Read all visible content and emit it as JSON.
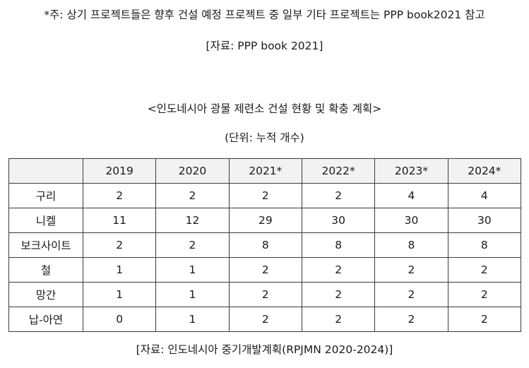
{
  "note": "*주: 상기 프로젝트들은 향후 건설 예정 프로젝트 중 일부 기타 프로젝트는 PPP book2021 참고",
  "source_top": "[자료: PPP book 2021]",
  "table_title": "<인도네시아 광물 제련소 건설 현황 및 확충 계획>",
  "unit": "(단위: 누적 개수)",
  "table": {
    "corner": "",
    "years": [
      "2019",
      "2020",
      "2021*",
      "2022*",
      "2023*",
      "2024*"
    ],
    "rows": [
      {
        "label": "구리",
        "values": [
          "2",
          "2",
          "2",
          "2",
          "4",
          "4"
        ]
      },
      {
        "label": "니켈",
        "values": [
          "11",
          "12",
          "29",
          "30",
          "30",
          "30"
        ]
      },
      {
        "label": "보크사이트",
        "values": [
          "2",
          "2",
          "8",
          "8",
          "8",
          "8"
        ]
      },
      {
        "label": "철",
        "values": [
          "1",
          "1",
          "2",
          "2",
          "2",
          "2"
        ]
      },
      {
        "label": "망간",
        "values": [
          "1",
          "1",
          "2",
          "2",
          "2",
          "2"
        ]
      },
      {
        "label": "납-아연",
        "values": [
          "0",
          "1",
          "2",
          "2",
          "2",
          "2"
        ]
      }
    ]
  },
  "source_bottom": "[자료: 인도네시아 중기개발계획(RPJMN 2020-2024)]"
}
